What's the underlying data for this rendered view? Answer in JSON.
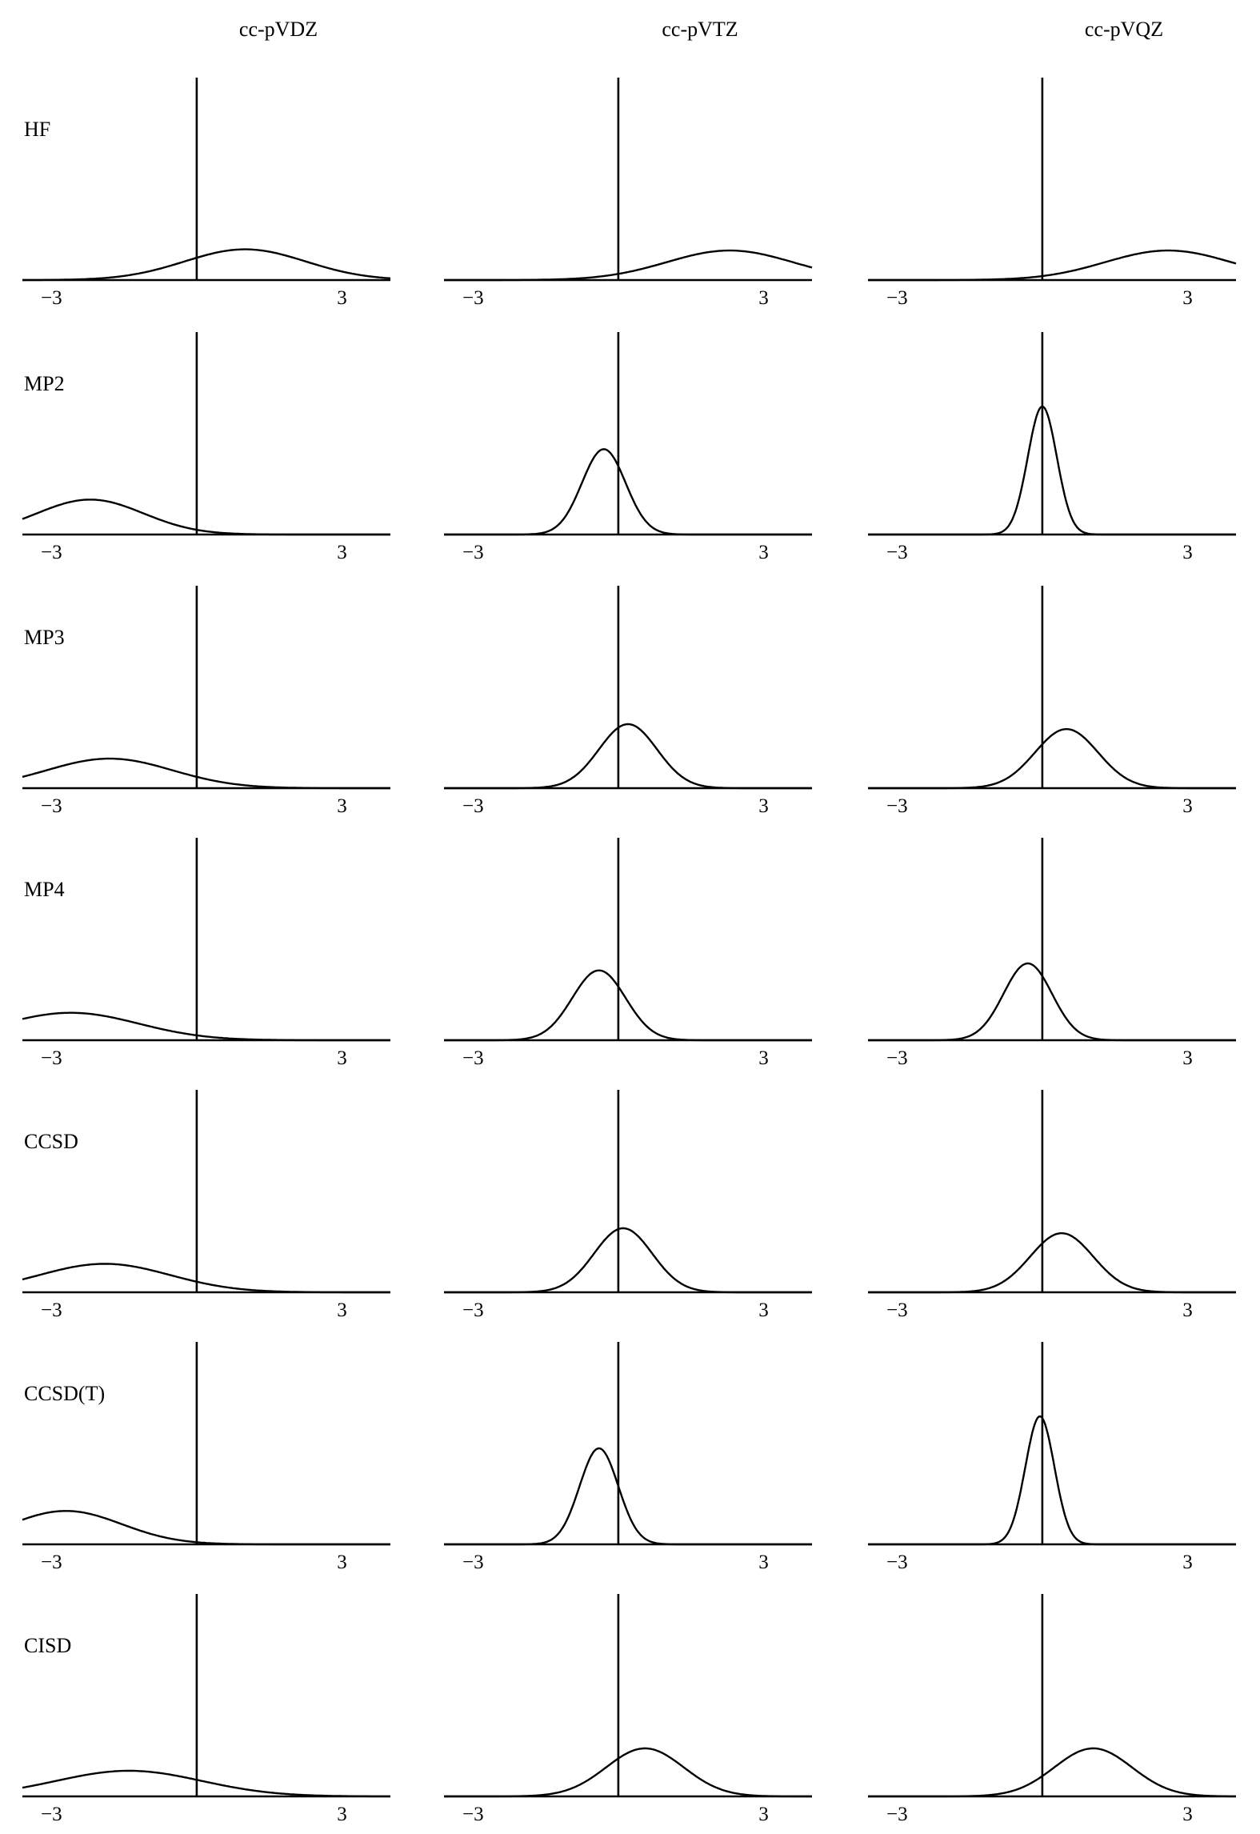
{
  "chart_data": {
    "type": "line",
    "columns": [
      "cc-pVDZ",
      "cc-pVTZ",
      "cc-pVQZ"
    ],
    "rows": [
      "HF",
      "MP2",
      "MP3",
      "MP4",
      "CCSD",
      "CCSD(T)",
      "CISD"
    ],
    "xlim": [
      -3.6,
      4.0
    ],
    "xticks": [
      -3,
      3
    ],
    "xtick_labels": [
      "−3",
      "3"
    ],
    "reference_line_x": 0,
    "panels": [
      {
        "method": "HF",
        "basis": "cc-pVDZ",
        "mean": 1.0,
        "sd": 1.25
      },
      {
        "method": "HF",
        "basis": "cc-pVTZ",
        "mean": 2.3,
        "sd": 1.3
      },
      {
        "method": "HF",
        "basis": "cc-pVQZ",
        "mean": 2.6,
        "sd": 1.3
      },
      {
        "method": "MP2",
        "basis": "cc-pVDZ",
        "mean": -2.2,
        "sd": 1.1
      },
      {
        "method": "MP2",
        "basis": "cc-pVTZ",
        "mean": -0.3,
        "sd": 0.45
      },
      {
        "method": "MP2",
        "basis": "cc-pVQZ",
        "mean": 0.0,
        "sd": 0.3
      },
      {
        "method": "MP3",
        "basis": "cc-pVDZ",
        "mean": -1.8,
        "sd": 1.3
      },
      {
        "method": "MP3",
        "basis": "cc-pVTZ",
        "mean": 0.2,
        "sd": 0.6
      },
      {
        "method": "MP3",
        "basis": "cc-pVQZ",
        "mean": 0.5,
        "sd": 0.65
      },
      {
        "method": "MP4",
        "basis": "cc-pVDZ",
        "mean": -2.6,
        "sd": 1.4
      },
      {
        "method": "MP4",
        "basis": "cc-pVTZ",
        "mean": -0.4,
        "sd": 0.55
      },
      {
        "method": "MP4",
        "basis": "cc-pVQZ",
        "mean": -0.3,
        "sd": 0.5
      },
      {
        "method": "CCSD",
        "basis": "cc-pVDZ",
        "mean": -1.9,
        "sd": 1.35
      },
      {
        "method": "CCSD",
        "basis": "cc-pVTZ",
        "mean": 0.1,
        "sd": 0.6
      },
      {
        "method": "CCSD",
        "basis": "cc-pVQZ",
        "mean": 0.4,
        "sd": 0.65
      },
      {
        "method": "CCSD(T)",
        "basis": "cc-pVDZ",
        "mean": -2.7,
        "sd": 1.15
      },
      {
        "method": "CCSD(T)",
        "basis": "cc-pVTZ",
        "mean": -0.4,
        "sd": 0.4
      },
      {
        "method": "CCSD(T)",
        "basis": "cc-pVQZ",
        "mean": -0.05,
        "sd": 0.3
      },
      {
        "method": "CISD",
        "basis": "cc-pVDZ",
        "mean": -1.4,
        "sd": 1.5
      },
      {
        "method": "CISD",
        "basis": "cc-pVTZ",
        "mean": 0.55,
        "sd": 0.8
      },
      {
        "method": "CISD",
        "basis": "cc-pVQZ",
        "mean": 1.05,
        "sd": 0.8
      }
    ]
  }
}
